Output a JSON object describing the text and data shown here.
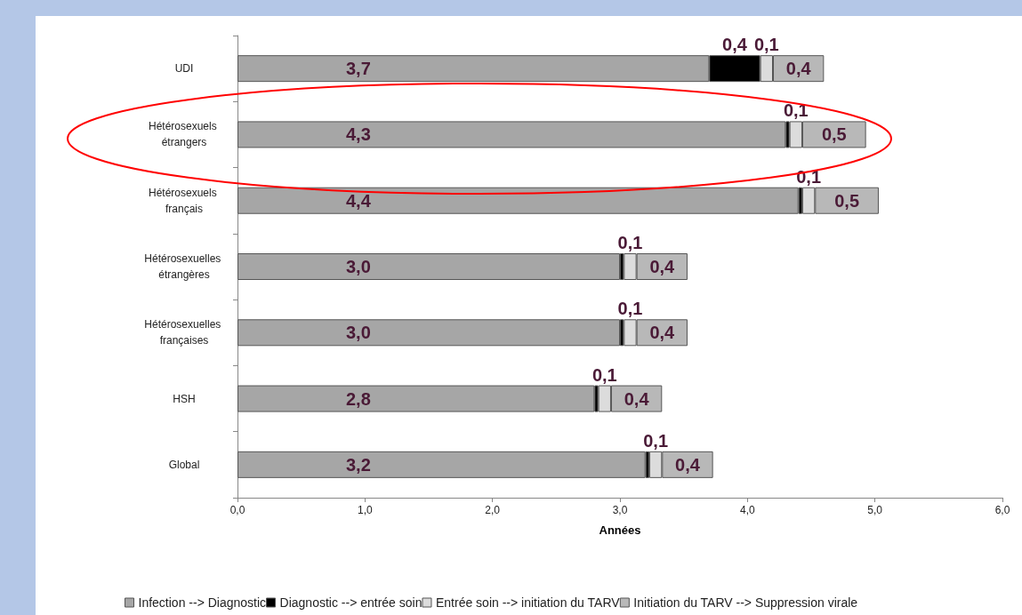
{
  "chart_data": {
    "type": "bar",
    "orientation": "horizontal",
    "stacked": true,
    "xlabel": "Années",
    "categories": [
      "UDI",
      "Hétérosexuels étrangers",
      "Hétérosexuels français",
      "Hétérosexuelles étrangères",
      "Hétérosexuelles françaises",
      "HSH",
      "Global"
    ],
    "series": [
      {
        "name": "Infection --> Diagnostic",
        "color": "#a6a6a6",
        "values": [
          3.7,
          4.3,
          4.4,
          3.0,
          3.0,
          2.8,
          3.2
        ],
        "value_labels": [
          "3,7",
          "4,3",
          "4,4",
          "3,0",
          "3,0",
          "2,8",
          "3,2"
        ]
      },
      {
        "name": "Diagnostic --> entrée soin",
        "color": "#000000",
        "values": [
          0.4,
          0.03,
          0.03,
          0.03,
          0.03,
          0.03,
          0.03
        ],
        "value_labels": [
          "0,4",
          null,
          null,
          null,
          null,
          null,
          null
        ]
      },
      {
        "name": "Entrée soin --> initiation du TARV",
        "color": "#dcdcdc",
        "values": [
          0.1,
          0.1,
          0.1,
          0.1,
          0.1,
          0.1,
          0.1
        ],
        "value_labels": [
          "0,1",
          "0,1",
          "0,1",
          "0,1",
          "0,1",
          "0,1",
          "0,1"
        ]
      },
      {
        "name": "Initiation du TARV --> Suppression virale",
        "color": "#b8b8b8",
        "values": [
          0.4,
          0.5,
          0.5,
          0.4,
          0.4,
          0.4,
          0.4
        ],
        "value_labels": [
          "0,4",
          "0,5",
          "0,5",
          "0,4",
          "0,4",
          "0,4",
          "0,4"
        ]
      }
    ],
    "xlim": [
      0,
      6
    ],
    "xticks": [
      {
        "value": 0,
        "label": "0,0"
      },
      {
        "value": 1,
        "label": "1,0"
      },
      {
        "value": 2,
        "label": "2,0"
      },
      {
        "value": 3,
        "label": "3,0"
      },
      {
        "value": 4,
        "label": "4,0"
      },
      {
        "value": 5,
        "label": "5,0"
      },
      {
        "value": 6,
        "label": "6,0"
      }
    ],
    "grid": false,
    "legend": "bottom"
  }
}
